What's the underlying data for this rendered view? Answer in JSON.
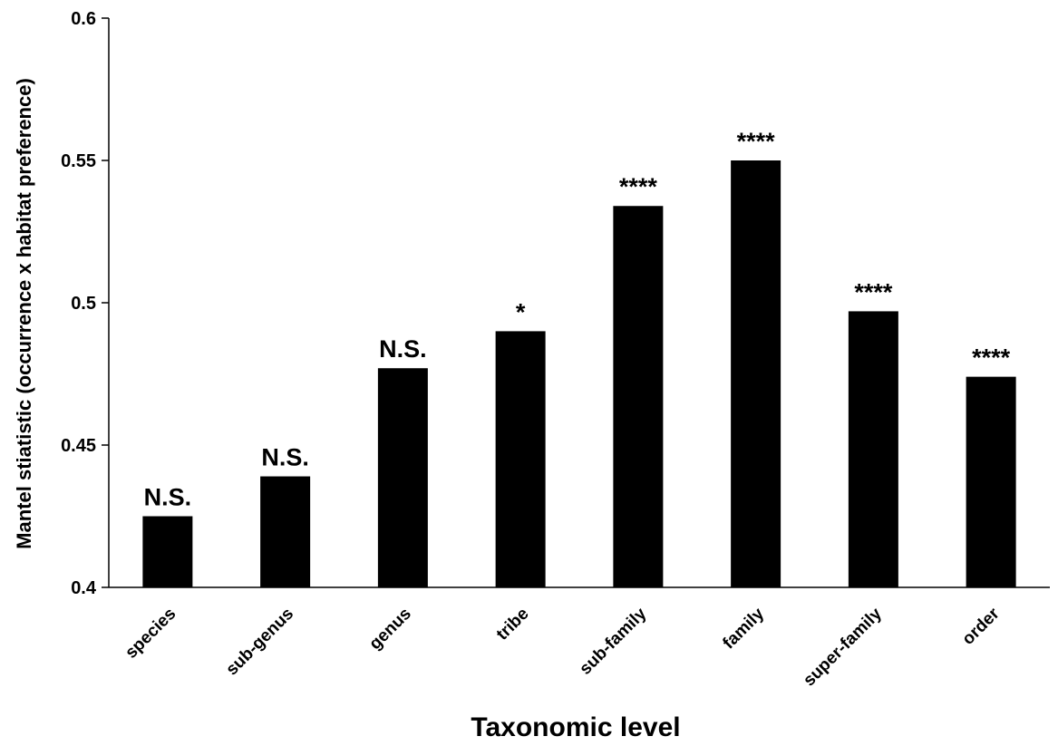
{
  "chart_data": {
    "type": "bar",
    "title": "",
    "xlabel": "Taxonomic level",
    "ylabel": "Mantel stiatistic  (occurrence x habitat preference)",
    "ylim": [
      0.4,
      0.6
    ],
    "yticks": [
      "0.4",
      "0.45",
      "0.5",
      "0.55",
      "0.6"
    ],
    "categories": [
      "species",
      "sub-genus",
      "genus",
      "tribe",
      "sub-family",
      "family",
      "super-family",
      "order"
    ],
    "values": [
      0.425,
      0.439,
      0.477,
      0.49,
      0.534,
      0.55,
      0.497,
      0.474
    ],
    "significance": [
      "N.S.",
      "N.S.",
      "N.S.",
      "*",
      "****",
      "****",
      "****",
      "****"
    ],
    "bar_color": "#000000",
    "grid": false,
    "legend": "none"
  }
}
